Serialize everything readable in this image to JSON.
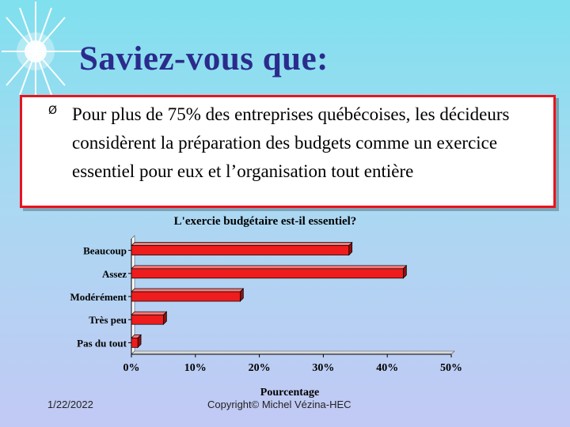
{
  "slide": {
    "title": "Saviez-vous que:",
    "bullet_symbol": "Ø",
    "bullet_text": "Pour plus de 75% des entreprises  québécoises, les décideurs considèrent la préparation des budgets comme un exercice essentiel pour eux et l’organisation tout entière",
    "box_border_color": "#e8141e",
    "title_color": "#2b2b8c"
  },
  "footer": {
    "date": "1/22/2022",
    "copyright": "Copyright© Michel Vézina-HEC"
  },
  "chart_data": {
    "type": "bar",
    "orientation": "horizontal",
    "title": "L'exercie budgétaire est-il essentiel?",
    "xlabel": "Pourcentage",
    "ylabel": "",
    "categories": [
      "Beaucoup",
      "Assez",
      "Modérément",
      "Très peu",
      "Pas du tout"
    ],
    "values": [
      34,
      42.5,
      17,
      5,
      1
    ],
    "xlim": [
      0,
      50
    ],
    "ticks": [
      0,
      10,
      20,
      30,
      40,
      50
    ],
    "tick_labels": [
      "0%",
      "10%",
      "20%",
      "30%",
      "40%",
      "50%"
    ],
    "bar_color": "#ee1c1c",
    "grid": false,
    "legend": "none"
  }
}
